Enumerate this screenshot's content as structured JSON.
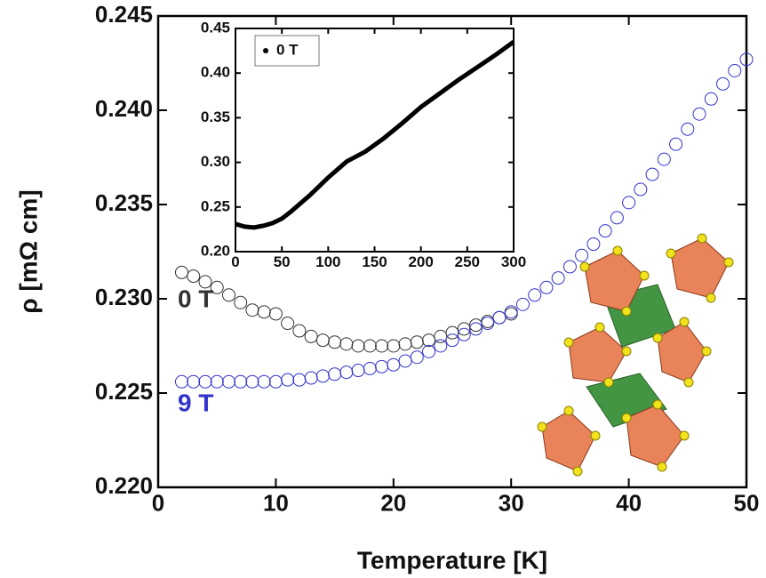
{
  "chart_data": [
    {
      "type": "scatter",
      "xlabel": "Temperature [K]",
      "ylabel": "ρ [mΩ cm]",
      "xlim": [
        0,
        50
      ],
      "xticks": [
        0,
        10,
        20,
        30,
        40,
        50
      ],
      "ylim": [
        0.22,
        0.245
      ],
      "yticks": [
        {
          "value": 0.22,
          "label": "0.220"
        },
        0.225,
        {
          "value": 0.23,
          "label": "0.230"
        },
        0.235,
        {
          "value": 0.24,
          "label": "0.240"
        },
        0.245
      ],
      "series": [
        {
          "name": "0 T",
          "color": "#333333",
          "x": [
            2,
            3,
            4,
            5,
            6,
            7,
            8,
            9,
            10,
            11,
            12,
            13,
            14,
            15,
            16,
            17,
            18,
            19,
            20,
            21,
            22,
            23,
            24,
            25,
            26,
            27,
            28,
            29,
            30
          ],
          "values": [
            0.2314,
            0.2312,
            0.2309,
            0.2306,
            0.2302,
            0.2298,
            0.2294,
            0.2293,
            0.2292,
            0.2287,
            0.2283,
            0.228,
            0.2278,
            0.2277,
            0.2276,
            0.2275,
            0.2275,
            0.2275,
            0.2275,
            0.2276,
            0.2277,
            0.2278,
            0.228,
            0.2282,
            0.2284,
            0.2286,
            0.2288,
            0.229,
            0.2292
          ]
        },
        {
          "name": "9 T",
          "color": "#3333cc",
          "x": [
            2,
            3,
            4,
            5,
            6,
            7,
            8,
            9,
            10,
            11,
            12,
            13,
            14,
            15,
            16,
            17,
            18,
            19,
            20,
            21,
            22,
            23,
            24,
            25,
            26,
            27,
            28,
            29,
            30,
            31,
            32,
            33,
            34,
            35,
            36,
            37,
            38,
            39,
            40,
            41,
            42,
            43,
            44,
            45,
            46,
            47,
            48,
            49,
            50
          ],
          "values": [
            0.2256,
            0.2256,
            0.2256,
            0.2256,
            0.2256,
            0.2256,
            0.2256,
            0.2256,
            0.2256,
            0.2257,
            0.2257,
            0.2258,
            0.2259,
            0.226,
            0.2261,
            0.2262,
            0.2263,
            0.2264,
            0.2265,
            0.2267,
            0.2269,
            0.2272,
            0.2275,
            0.2278,
            0.2281,
            0.2284,
            0.2287,
            0.229,
            0.2293,
            0.2297,
            0.2302,
            0.2306,
            0.2311,
            0.2317,
            0.2323,
            0.2329,
            0.2336,
            0.2343,
            0.2351,
            0.2358,
            0.2366,
            0.2374,
            0.2382,
            0.239,
            0.2398,
            0.2406,
            0.2414,
            0.2421,
            0.2427
          ]
        }
      ]
    },
    {
      "type": "line",
      "legend": "upper left",
      "xlim": [
        0,
        300
      ],
      "xticks": [
        0,
        50,
        100,
        150,
        200,
        250,
        300
      ],
      "ylim": [
        0.2,
        0.45
      ],
      "yticks": [
        {
          "value": 0.2,
          "label": "0.20"
        },
        0.25,
        {
          "value": 0.3,
          "label": "0.30"
        },
        0.35,
        {
          "value": 0.4,
          "label": "0.40"
        },
        0.45
      ],
      "series": [
        {
          "name": "0 T",
          "color": "#000000",
          "x": [
            0,
            10,
            20,
            30,
            40,
            50,
            60,
            80,
            100,
            120,
            140,
            160,
            180,
            200,
            220,
            240,
            260,
            280,
            300
          ],
          "values": [
            0.231,
            0.228,
            0.227,
            0.229,
            0.232,
            0.237,
            0.245,
            0.263,
            0.283,
            0.301,
            0.312,
            0.327,
            0.344,
            0.362,
            0.377,
            0.392,
            0.406,
            0.42,
            0.435
          ]
        }
      ]
    }
  ]
}
